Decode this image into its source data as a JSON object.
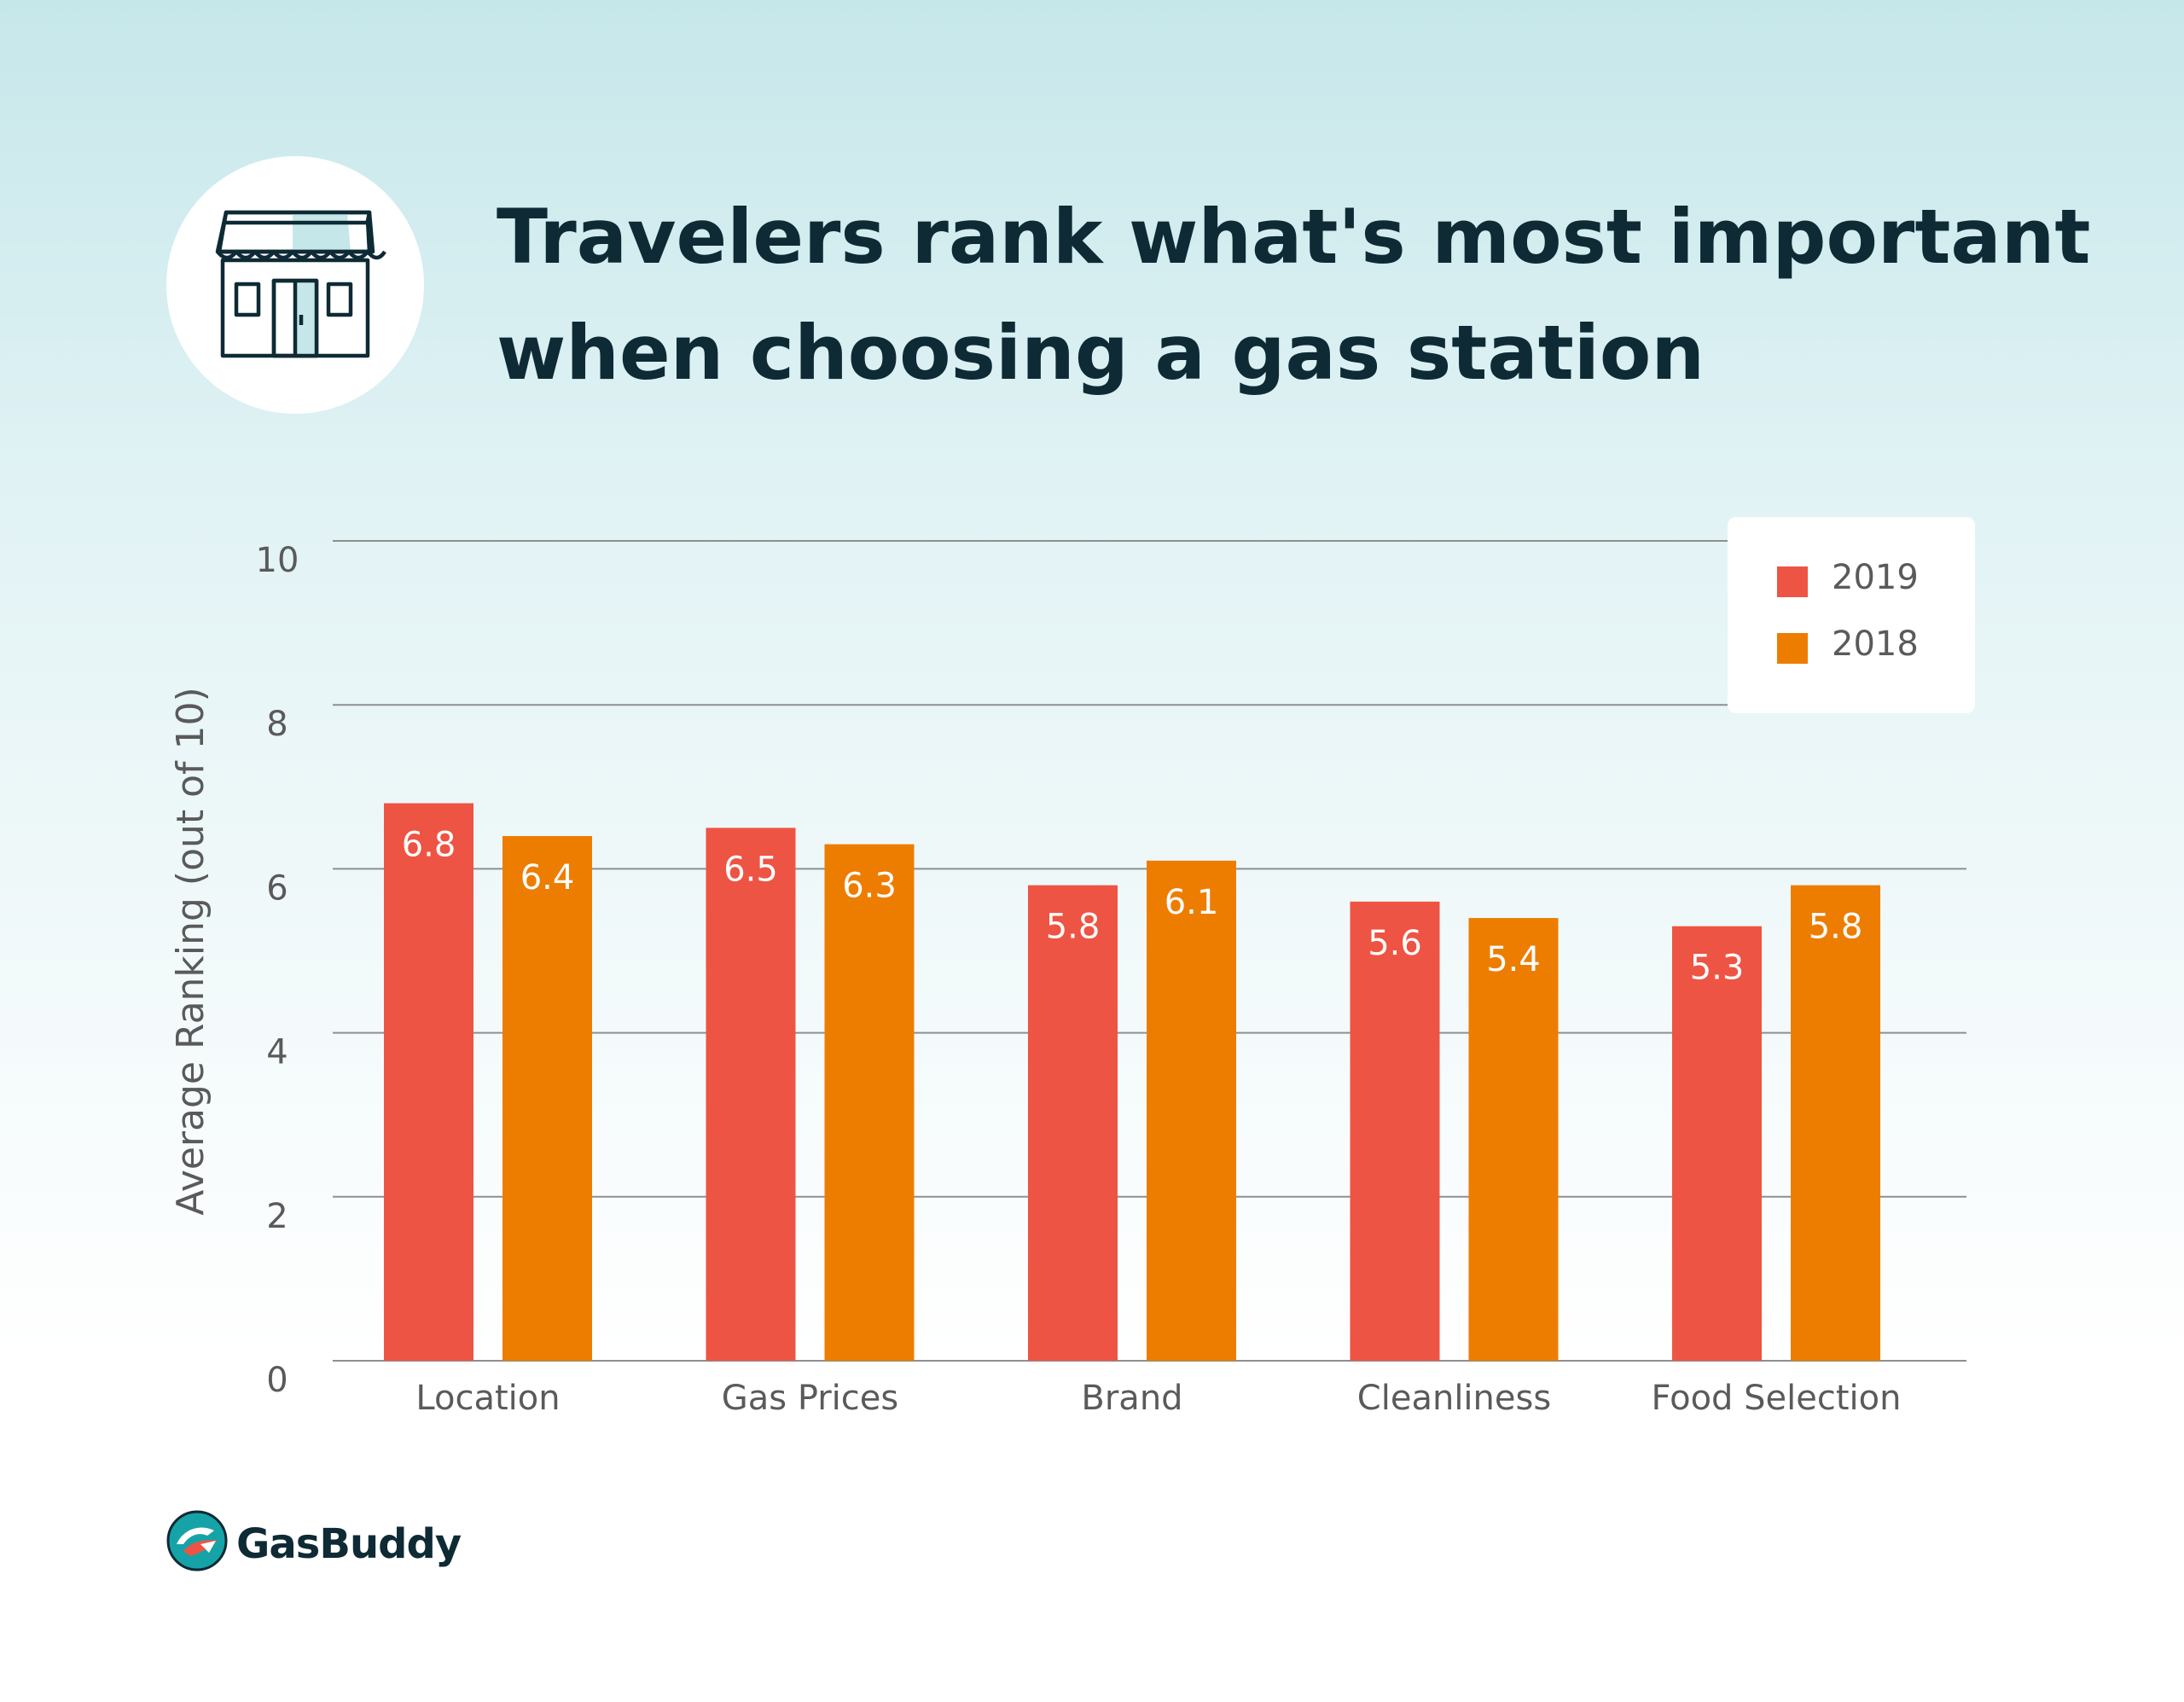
{
  "title": {
    "line1": "Travelers rank what's most important",
    "line2": "when choosing a gas station"
  },
  "icon": "storefront-icon",
  "logo": {
    "text": "GasBuddy",
    "icon": "gasbuddy-logo-icon"
  },
  "colors": {
    "series_2019": "#ee5443",
    "series_2018": "#ed7d00",
    "title": "#0e2a35",
    "gridline": "#8f8f8f",
    "axis_text": "#5a5a5a",
    "bar_label": "#ffffff"
  },
  "chart_data": {
    "type": "bar",
    "categories": [
      "Location",
      "Gas Prices",
      "Brand",
      "Cleanliness",
      "Food Selection"
    ],
    "series": [
      {
        "name": "2019",
        "values": [
          6.8,
          6.5,
          5.8,
          5.6,
          5.3
        ]
      },
      {
        "name": "2018",
        "values": [
          6.4,
          6.3,
          6.1,
          5.4,
          5.8
        ]
      }
    ],
    "ylabel": "Average Ranking (out of 10)",
    "xlabel": "",
    "ylim": [
      0,
      10
    ],
    "yticks": [
      0,
      2,
      4,
      6,
      8,
      10
    ],
    "grid": true,
    "legend": "top-right",
    "data_labels": true
  }
}
